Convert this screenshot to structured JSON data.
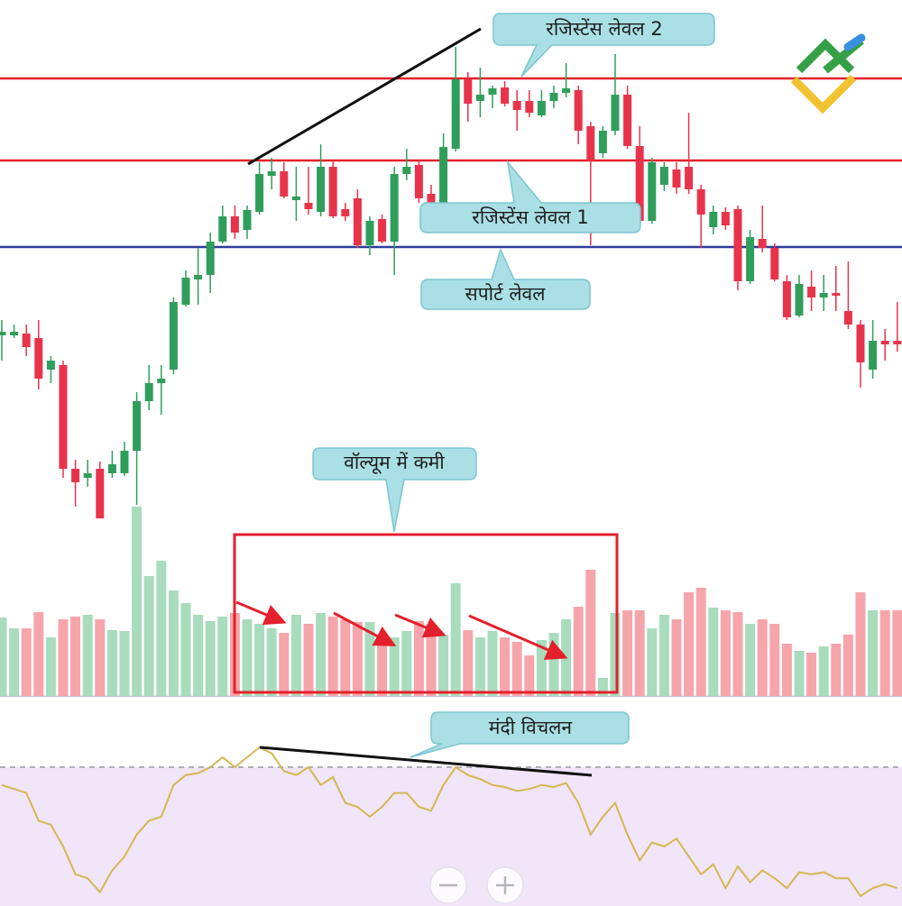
{
  "chart_data": [
    {
      "type": "candlestick",
      "open": [
        628,
        628,
        630,
        625,
        590,
        595,
        480,
        470,
        480,
        475,
        475,
        500,
        555,
        575,
        590,
        662,
        690,
        695,
        732,
        760,
        745,
        765,
        805,
        810,
        778,
        775,
        765,
        815,
        768,
        780,
        728,
        757,
        732,
        807,
        817,
        785,
        775,
        835,
        912,
        888,
        895,
        903,
        888,
        888,
        872,
        888,
        897,
        900,
        860,
        830,
        855,
        895,
        838,
        755,
        795,
        812,
        815,
        790,
        748,
        765,
        768,
        688,
        735,
        725,
        688,
        650,
        682,
        670,
        675,
        655,
        640,
        590,
        622,
        622
      ],
      "high": [
        645,
        640,
        640,
        645,
        605,
        600,
        490,
        490,
        488,
        500,
        510,
        565,
        595,
        595,
        670,
        700,
        725,
        742,
        772,
        772,
        772,
        820,
        825,
        820,
        815,
        815,
        840,
        822,
        775,
        790,
        760,
        762,
        815,
        835,
        822,
        795,
        852,
        948,
        920,
        925,
        905,
        910,
        900,
        900,
        900,
        905,
        930,
        905,
        865,
        860,
        940,
        905,
        860,
        825,
        820,
        820,
        875,
        795,
        772,
        770,
        772,
        745,
        772,
        730,
        695,
        695,
        700,
        695,
        705,
        710,
        645,
        645,
        635,
        665
      ],
      "low": [
        600,
        625,
        605,
        568,
        575,
        470,
        438,
        460,
        425,
        470,
        472,
        440,
        545,
        540,
        585,
        660,
        662,
        675,
        730,
        735,
        735,
        762,
        790,
        780,
        755,
        762,
        760,
        758,
        755,
        725,
        717,
        730,
        695,
        800,
        775,
        768,
        772,
        832,
        865,
        870,
        880,
        882,
        855,
        870,
        870,
        880,
        892,
        840,
        728,
        825,
        850,
        835,
        752,
        752,
        788,
        785,
        785,
        725,
        740,
        745,
        678,
        685,
        720,
        688,
        645,
        648,
        655,
        655,
        655,
        635,
        570,
        580,
        600,
        610
      ],
      "close": [
        632,
        632,
        615,
        580,
        600,
        480,
        465,
        475,
        425,
        485,
        500,
        555,
        575,
        580,
        665,
        692,
        695,
        732,
        760,
        742,
        767,
        807,
        810,
        782,
        782,
        768,
        815,
        760,
        760,
        728,
        755,
        732,
        807,
        815,
        780,
        775,
        837,
        912,
        885,
        895,
        902,
        885,
        878,
        875,
        888,
        897,
        902,
        855,
        822,
        855,
        895,
        838,
        755,
        820,
        815,
        792,
        790,
        762,
        765,
        750,
        688,
        737,
        725,
        690,
        648,
        685,
        670,
        675,
        672,
        640,
        598,
        622,
        618,
        618
      ],
      "up_color": "#2f9e5b",
      "down_color": "#e8344b",
      "ylim": [
        400,
        1000
      ],
      "hlines": [
        {
          "value": 913,
          "color": "#e3202c"
        },
        {
          "value": 822,
          "color": "#e3202c"
        },
        {
          "value": 726,
          "color": "#2c3d9c"
        }
      ]
    },
    {
      "type": "bar",
      "values": [
        87,
        75,
        75,
        93,
        65,
        85,
        88,
        90,
        85,
        73,
        72,
        210,
        133,
        150,
        117,
        103,
        90,
        83,
        88,
        92,
        85,
        80,
        75,
        70,
        90,
        80,
        92,
        88,
        85,
        82,
        82,
        67,
        65,
        72,
        83,
        80,
        68,
        125,
        73,
        65,
        72,
        65,
        60,
        45,
        62,
        70,
        85,
        99,
        140,
        20,
        92,
        95,
        95,
        75,
        90,
        85,
        115,
        120,
        98,
        95,
        93,
        80,
        85,
        80,
        58,
        50,
        48,
        55,
        58,
        68,
        115,
        95,
        95,
        95
      ],
      "up_color": "#a9dbbd",
      "down_color": "#f6a5ab",
      "ylim": [
        0,
        220
      ]
    },
    {
      "type": "line",
      "values": [
        61,
        59,
        57,
        43,
        41,
        30,
        16,
        14,
        7,
        18,
        25,
        36,
        43,
        45,
        61,
        66,
        67,
        70,
        75,
        70,
        75,
        80,
        77,
        68,
        66,
        70,
        61,
        65,
        52,
        50,
        45,
        50,
        57,
        57,
        50,
        48,
        61,
        70,
        66,
        64,
        61,
        60,
        58,
        59,
        61,
        60,
        62,
        52,
        36,
        45,
        52,
        36,
        23,
        32,
        30,
        34,
        25,
        16,
        21,
        9,
        20,
        12,
        18,
        14,
        9,
        17,
        16,
        17,
        14,
        14,
        5,
        9,
        11,
        9
      ],
      "color": "#d4b84f",
      "fill": "#f1e5fa",
      "level": 70,
      "level_color": "#9a9a9a",
      "ylim": [
        0,
        100
      ]
    }
  ],
  "annotations": [
    "रजिस्टेंस लेवल 2",
    "रजिस्टेंस लेवल 1",
    "सपोर्ट लेवल",
    "वॉल्यूम में कमी",
    "मंदी विचलन"
  ]
}
